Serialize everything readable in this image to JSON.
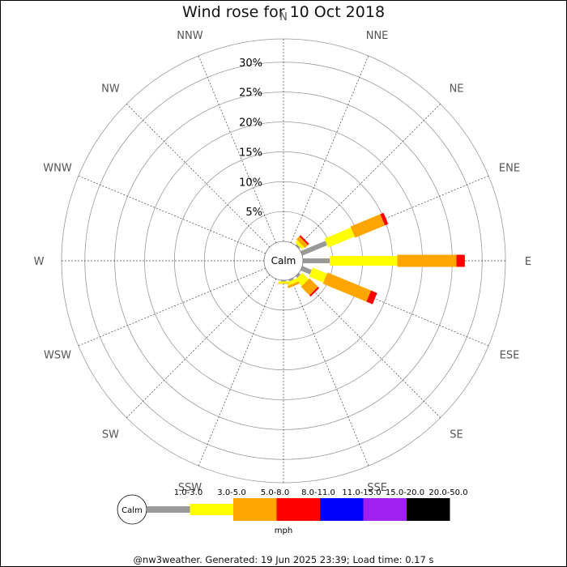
{
  "chart_data": {
    "type": "wind-rose",
    "title": "Wind rose for 10 Oct 2018",
    "center_label": "Calm",
    "directions": [
      "N",
      "NNE",
      "NE",
      "ENE",
      "E",
      "ESE",
      "SE",
      "SSE",
      "S",
      "SSW",
      "SW",
      "WSW",
      "W",
      "WNW",
      "NW",
      "NNW"
    ],
    "radial_ticks": [
      "5%",
      "10%",
      "15%",
      "20%",
      "25%",
      "30%"
    ],
    "radial_max": 32,
    "radial_unit": "%",
    "speed_unit": "mph",
    "speed_bins": [
      {
        "range": "1.0-3.0",
        "color": "#999999"
      },
      {
        "range": "3.0-5.0",
        "color": "#ffff00"
      },
      {
        "range": "5.0-8.0",
        "color": "#ffa500"
      },
      {
        "range": "8.0-11.0",
        "color": "#ff0000"
      },
      {
        "range": "11.0-15.0",
        "color": "#0000ff"
      },
      {
        "range": "15.0-20.0",
        "color": "#a020f0"
      },
      {
        "range": "20.0-50.0",
        "color": "#000000"
      }
    ],
    "series": [
      {
        "direction": "NE",
        "values": [
          0.3,
          0.5,
          0.7,
          0.3,
          0,
          0,
          0
        ]
      },
      {
        "direction": "ENE",
        "values": [
          4.5,
          4.8,
          5.4,
          0.6,
          0,
          0,
          0
        ]
      },
      {
        "direction": "E",
        "values": [
          4.5,
          11.3,
          9.9,
          1.4,
          0,
          0,
          0
        ]
      },
      {
        "direction": "ESE",
        "values": [
          1.7,
          2.6,
          7.9,
          1.1,
          0,
          0,
          0
        ]
      },
      {
        "direction": "SE",
        "values": [
          0.4,
          1.5,
          2.0,
          0.3,
          0,
          0,
          0
        ]
      },
      {
        "direction": "SSE",
        "values": [
          0.3,
          0.6,
          0.4,
          0,
          0,
          0,
          0
        ]
      },
      {
        "direction": "S",
        "values": [
          0.2,
          0.3,
          0.1,
          0,
          0,
          0,
          0
        ]
      }
    ]
  },
  "footer": "@nw3weather. Generated: 19 Jun 2025 23:39; Load time: 0.17 s"
}
